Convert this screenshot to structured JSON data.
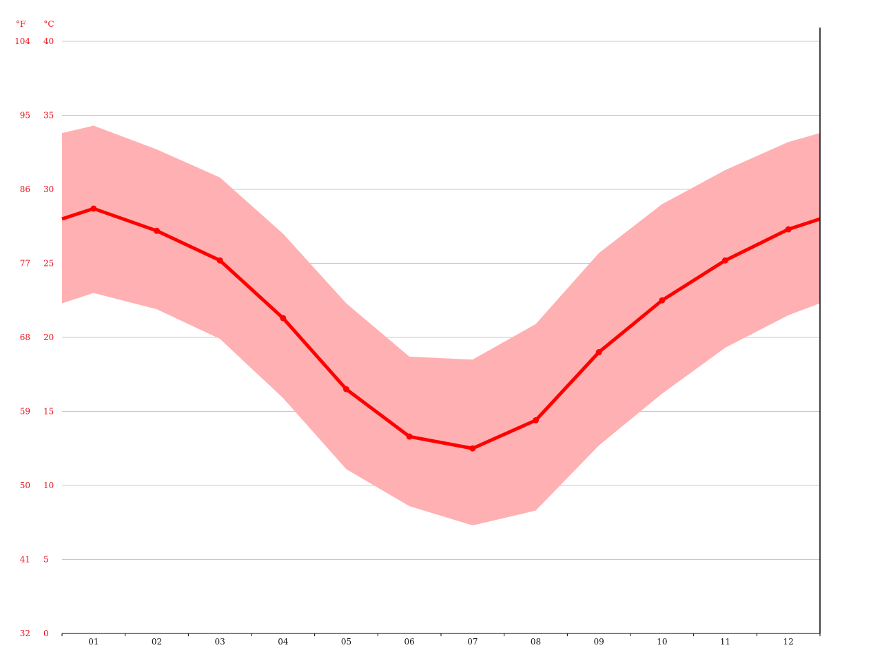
{
  "chart_data": {
    "type": "line",
    "title": "",
    "units": {
      "left": "°F",
      "right": "°C"
    },
    "categories": [
      "01",
      "02",
      "03",
      "04",
      "05",
      "06",
      "07",
      "08",
      "09",
      "10",
      "11",
      "12"
    ],
    "series": [
      {
        "role": "mean",
        "values": [
          28.7,
          27.2,
          25.2,
          21.3,
          16.5,
          13.3,
          12.5,
          14.4,
          19.0,
          22.5,
          25.2,
          27.3
        ]
      },
      {
        "role": "max",
        "values": [
          34.3,
          32.7,
          30.8,
          27.0,
          22.3,
          18.7,
          18.5,
          20.9,
          25.7,
          29.0,
          31.3,
          33.2
        ]
      },
      {
        "role": "min",
        "values": [
          23.0,
          21.9,
          19.9,
          15.9,
          11.1,
          8.6,
          7.3,
          8.3,
          12.7,
          16.2,
          19.3,
          21.5
        ]
      }
    ],
    "edge_values": {
      "mean": 28.0,
      "max": 33.8,
      "min": 22.3
    },
    "ylim": [
      0,
      40
    ],
    "yticks_celsius": [
      "0",
      "5",
      "10",
      "15",
      "20",
      "25",
      "30",
      "35",
      "40"
    ],
    "yticks_fahrenheit": [
      "32",
      "41",
      "50",
      "59",
      "68",
      "77",
      "86",
      "95",
      "104"
    ],
    "grid": true,
    "colors": {
      "line": "#ff0000",
      "band": "#ffb0b2",
      "ticks": "#e8101b",
      "grid": "#c8c8c8",
      "axis": "#000000"
    }
  }
}
